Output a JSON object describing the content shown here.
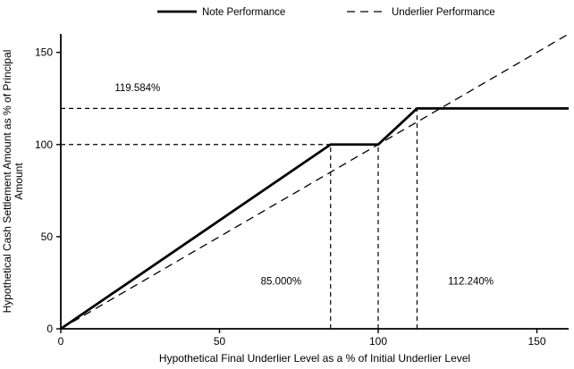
{
  "chart_data": {
    "type": "line",
    "title": "",
    "xlabel": "Hypothetical Final Underlier Level as a % of Initial Underlier Level",
    "ylabel": "Hypothetical Cash Settlement Amount as % of Principal Amount",
    "ylabel_lines": [
      "Hypothetical Cash Settlement Amount as % of Principal",
      "Amount"
    ],
    "xlim": [
      0,
      160
    ],
    "ylim": [
      0,
      160
    ],
    "xticks": [
      0,
      50,
      100,
      150
    ],
    "yticks": [
      0,
      50,
      100,
      150
    ],
    "grid": false,
    "legend_position": "top",
    "series": [
      {
        "name": "Note Performance",
        "style": "solid",
        "stroke_width": 2.8,
        "points": [
          [
            0,
            0
          ],
          [
            85,
            100
          ],
          [
            100,
            100
          ],
          [
            112.24,
            119.584
          ],
          [
            160,
            119.584
          ]
        ]
      },
      {
        "name": "Underlier Performance",
        "style": "dashed",
        "stroke_width": 1.3,
        "points": [
          [
            0,
            0
          ],
          [
            160,
            160
          ]
        ]
      }
    ],
    "guides": [
      {
        "orient": "h",
        "y": 119.584,
        "x1": 0,
        "x2": 112.24
      },
      {
        "orient": "h",
        "y": 100,
        "x1": 0,
        "x2": 100
      },
      {
        "orient": "v",
        "x": 85,
        "y1": 0,
        "y2": 100
      },
      {
        "orient": "v",
        "x": 100,
        "y1": 0,
        "y2": 100
      },
      {
        "orient": "v",
        "x": 112.24,
        "y1": 0,
        "y2": 119.584
      }
    ],
    "annotations": [
      {
        "text": "119.584%",
        "x": 17,
        "y": 129,
        "anchor": "start"
      },
      {
        "text": "85.000%",
        "x": 63,
        "y": 24,
        "anchor": "start"
      },
      {
        "text": "112.240%",
        "x": 122,
        "y": 24,
        "anchor": "start"
      }
    ]
  },
  "colors": {
    "line": "#000000",
    "background": "#ffffff"
  }
}
